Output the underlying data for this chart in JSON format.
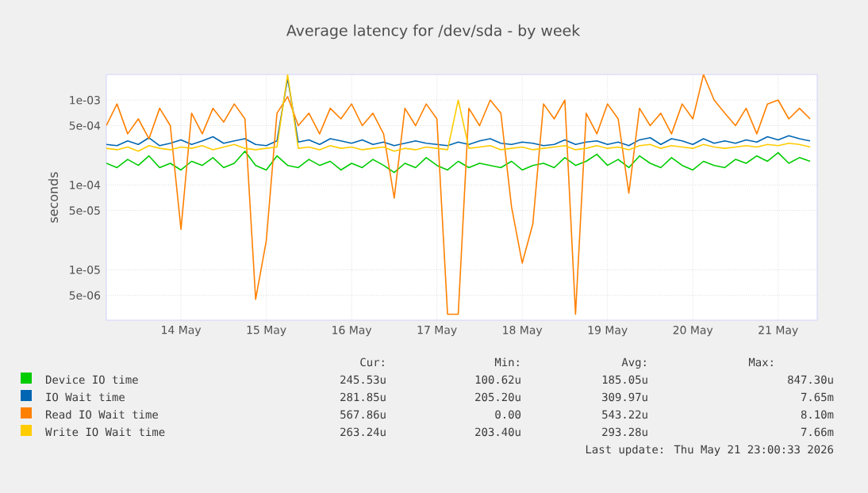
{
  "chart_data": {
    "type": "line",
    "title": "Average latency for /dev/sda - by week",
    "ylabel": "seconds",
    "log": "y",
    "grid": true,
    "legend": "bottom",
    "xlim": [
      "2026-05-13T15:00",
      "2026-05-21T23:00"
    ],
    "xticks": [
      {
        "value": "2026-05-14T12:00",
        "label": "14 May"
      },
      {
        "value": "2026-05-15T12:00",
        "label": "15 May"
      },
      {
        "value": "2026-05-16T12:00",
        "label": "16 May"
      },
      {
        "value": "2026-05-17T12:00",
        "label": "17 May"
      },
      {
        "value": "2026-05-18T12:00",
        "label": "18 May"
      },
      {
        "value": "2026-05-19T12:00",
        "label": "19 May"
      },
      {
        "value": "2026-05-20T12:00",
        "label": "20 May"
      },
      {
        "value": "2026-05-21T12:00",
        "label": "21 May"
      }
    ],
    "ylim": [
      2.55e-06,
      0.002
    ],
    "yticks": [
      {
        "value": 5e-06,
        "label": "5e-06"
      },
      {
        "value": 1e-05,
        "label": "1e-05"
      },
      {
        "value": 5e-05,
        "label": "5e-05"
      },
      {
        "value": 0.0001,
        "label": "1e-04"
      },
      {
        "value": 0.0005,
        "label": "5e-04"
      },
      {
        "value": 0.001,
        "label": "1e-03"
      }
    ],
    "x": [
      "2026-05-13T15:00",
      "2026-05-13T18:00",
      "2026-05-13T21:00",
      "2026-05-14T00:00",
      "2026-05-14T03:00",
      "2026-05-14T06:00",
      "2026-05-14T09:00",
      "2026-05-14T12:00",
      "2026-05-14T15:00",
      "2026-05-14T18:00",
      "2026-05-14T21:00",
      "2026-05-15T00:00",
      "2026-05-15T03:00",
      "2026-05-15T06:00",
      "2026-05-15T09:00",
      "2026-05-15T12:00",
      "2026-05-15T15:00",
      "2026-05-15T18:00",
      "2026-05-15T21:00",
      "2026-05-16T00:00",
      "2026-05-16T03:00",
      "2026-05-16T06:00",
      "2026-05-16T09:00",
      "2026-05-16T12:00",
      "2026-05-16T15:00",
      "2026-05-16T18:00",
      "2026-05-16T21:00",
      "2026-05-17T00:00",
      "2026-05-17T03:00",
      "2026-05-17T06:00",
      "2026-05-17T09:00",
      "2026-05-17T12:00",
      "2026-05-17T15:00",
      "2026-05-17T18:00",
      "2026-05-17T21:00",
      "2026-05-18T00:00",
      "2026-05-18T03:00",
      "2026-05-18T06:00",
      "2026-05-18T09:00",
      "2026-05-18T12:00",
      "2026-05-18T15:00",
      "2026-05-18T18:00",
      "2026-05-18T21:00",
      "2026-05-19T00:00",
      "2026-05-19T03:00",
      "2026-05-19T06:00",
      "2026-05-19T09:00",
      "2026-05-19T12:00",
      "2026-05-19T15:00",
      "2026-05-19T18:00",
      "2026-05-19T21:00",
      "2026-05-20T00:00",
      "2026-05-20T03:00",
      "2026-05-20T06:00",
      "2026-05-20T09:00",
      "2026-05-20T12:00",
      "2026-05-20T15:00",
      "2026-05-20T18:00",
      "2026-05-20T21:00",
      "2026-05-21T00:00",
      "2026-05-21T03:00",
      "2026-05-21T06:00",
      "2026-05-21T09:00",
      "2026-05-21T12:00",
      "2026-05-21T15:00",
      "2026-05-21T18:00",
      "2026-05-21T21:00"
    ],
    "series": [
      {
        "name": "Device IO time",
        "color": "#00cc00",
        "values": [
          0.00018,
          0.00016,
          0.0002,
          0.00017,
          0.00022,
          0.00016,
          0.00018,
          0.00015,
          0.00019,
          0.00017,
          0.00021,
          0.00016,
          0.00018,
          0.00025,
          0.00017,
          0.00015,
          0.00022,
          0.00017,
          0.00016,
          0.0002,
          0.00017,
          0.00019,
          0.00015,
          0.00018,
          0.00016,
          0.0002,
          0.00017,
          0.00014,
          0.00018,
          0.00016,
          0.00021,
          0.00017,
          0.00015,
          0.00019,
          0.00016,
          0.00018,
          0.00017,
          0.00016,
          0.00019,
          0.00015,
          0.00017,
          0.00018,
          0.00016,
          0.00021,
          0.00017,
          0.00019,
          0.00023,
          0.00017,
          0.0002,
          0.00016,
          0.00022,
          0.00018,
          0.00016,
          0.00021,
          0.00017,
          0.00015,
          0.00019,
          0.00017,
          0.00016,
          0.0002,
          0.00018,
          0.00022,
          0.00019,
          0.00024,
          0.00018,
          0.00021,
          0.00019
        ]
      },
      {
        "name": "IO Wait time",
        "color": "#0066b3",
        "values": [
          0.0003,
          0.00029,
          0.00033,
          0.0003,
          0.00036,
          0.00029,
          0.00031,
          0.00034,
          0.0003,
          0.00033,
          0.00037,
          0.00031,
          0.00033,
          0.00035,
          0.0003,
          0.00029,
          0.00033,
          0.0018,
          0.00032,
          0.00034,
          0.0003,
          0.00035,
          0.00033,
          0.00031,
          0.00034,
          0.0003,
          0.00032,
          0.00029,
          0.00031,
          0.00033,
          0.00031,
          0.0003,
          0.00029,
          0.00032,
          0.0003,
          0.00033,
          0.00035,
          0.00031,
          0.0003,
          0.00032,
          0.00031,
          0.00029,
          0.0003,
          0.00034,
          0.0003,
          0.00032,
          0.00033,
          0.0003,
          0.00032,
          0.00029,
          0.00034,
          0.00036,
          0.0003,
          0.00035,
          0.00033,
          0.0003,
          0.00035,
          0.00031,
          0.00033,
          0.00031,
          0.00034,
          0.00032,
          0.00037,
          0.00034,
          0.00038,
          0.00035,
          0.00033
        ]
      },
      {
        "name": "Read IO Wait time",
        "color": "#ff8000",
        "values": [
          0.0005,
          0.0009,
          0.0004,
          0.0006,
          0.00035,
          0.0008,
          0.0005,
          3e-05,
          0.0007,
          0.0004,
          0.0008,
          0.00055,
          0.0009,
          0.0006,
          4.5e-06,
          2.2e-05,
          0.0007,
          0.0011,
          0.0005,
          0.0007,
          0.0004,
          0.0008,
          0.0006,
          0.0009,
          0.0005,
          0.0007,
          0.0004,
          7e-05,
          0.0008,
          0.0005,
          0.0009,
          0.0006,
          3e-06,
          3e-06,
          0.0008,
          0.0005,
          0.001,
          0.0007,
          5.5e-05,
          1.2e-05,
          3.5e-05,
          0.0009,
          0.0006,
          0.001,
          3e-06,
          0.0007,
          0.0004,
          0.0009,
          0.0006,
          8e-05,
          0.0008,
          0.0005,
          0.0007,
          0.0004,
          0.0009,
          0.0006,
          0.002,
          0.001,
          0.0007,
          0.0005,
          0.0008,
          0.0004,
          0.0009,
          0.001,
          0.0006,
          0.0008,
          0.0006
        ]
      },
      {
        "name": "Write IO Wait time",
        "color": "#ffcc00",
        "values": [
          0.00027,
          0.00026,
          0.00028,
          0.00025,
          0.00029,
          0.00027,
          0.00026,
          0.00028,
          0.00027,
          0.00029,
          0.00026,
          0.00028,
          0.0003,
          0.00027,
          0.00026,
          0.00027,
          0.00028,
          0.002,
          0.00027,
          0.00028,
          0.00026,
          0.00029,
          0.00027,
          0.00028,
          0.00026,
          0.00027,
          0.00028,
          0.00025,
          0.00027,
          0.00026,
          0.00028,
          0.00027,
          0.00026,
          0.001,
          0.00027,
          0.00028,
          0.00029,
          0.00026,
          0.00027,
          0.00028,
          0.00026,
          0.00027,
          0.00028,
          0.00029,
          0.00026,
          0.00027,
          0.00029,
          0.00027,
          0.00028,
          0.00026,
          0.00029,
          0.0003,
          0.00027,
          0.00029,
          0.00028,
          0.00027,
          0.0003,
          0.00028,
          0.00027,
          0.00028,
          0.00029,
          0.00028,
          0.0003,
          0.00029,
          0.00031,
          0.0003,
          0.00028
        ]
      }
    ],
    "annotations": [
      "Cur:",
      "Min:",
      "Avg:",
      "Max:",
      "245.53u",
      "100.62u",
      "185.05u",
      "847.30u",
      "281.85u",
      "205.20u",
      "309.97u",
      "7.65m",
      "567.86u",
      "0.00",
      "543.22u",
      "8.10m",
      "263.24u",
      "203.40u",
      "293.28u",
      "7.66m",
      "Last update: Thu May 21 23:00:33 2026"
    ]
  }
}
